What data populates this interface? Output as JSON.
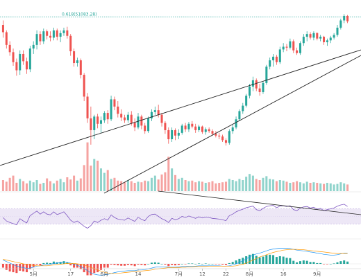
{
  "colors": {
    "up": "#26a69a",
    "down": "#ef5350",
    "vol_up": "#8fd3cb",
    "vol_down": "#f5a3a1",
    "rsi_line": "#7e57c2",
    "rsi_band": "#ede7f6",
    "macd_line": "#2196f3",
    "signal_line": "#ff9800",
    "trendline": "#222222",
    "fib_line": "#26a69a"
  },
  "fib_label": "0.618(51083.28)",
  "chart_data": {
    "type": "candlestick",
    "title": "",
    "x_tick_labels": [
      "5月",
      "17",
      "6月",
      "14",
      "7月",
      "12",
      "22",
      "8月",
      "16",
      "9月"
    ],
    "price_range": [
      36000,
      52800
    ],
    "price_panel": {
      "candles": [
        [
          50200,
          50700,
          48800,
          49400
        ],
        [
          49400,
          49600,
          47600,
          48000
        ],
        [
          48000,
          48400,
          46800,
          47200
        ],
        [
          47200,
          47600,
          45700,
          46100
        ],
        [
          46100,
          46500,
          44600,
          45200
        ],
        [
          45200,
          47400,
          44700,
          47000
        ],
        [
          47000,
          47400,
          45800,
          46200
        ],
        [
          46200,
          46600,
          44800,
          45300
        ],
        [
          45300,
          47900,
          45000,
          47600
        ],
        [
          47600,
          48400,
          47000,
          48000
        ],
        [
          48000,
          49600,
          47500,
          49200
        ],
        [
          49200,
          49500,
          48000,
          48400
        ],
        [
          48400,
          49800,
          48100,
          49500
        ],
        [
          49500,
          49700,
          48600,
          49000
        ],
        [
          49000,
          49500,
          48400,
          48800
        ],
        [
          48800,
          49900,
          48500,
          49600
        ],
        [
          49600,
          49800,
          48500,
          48900
        ],
        [
          48900,
          49600,
          48300,
          49300
        ],
        [
          49300,
          49900,
          49000,
          49600
        ],
        [
          49600,
          50000,
          48700,
          49000
        ],
        [
          49000,
          49200,
          46800,
          47300
        ],
        [
          47300,
          47600,
          45600,
          46000
        ],
        [
          46000,
          46600,
          45600,
          46300
        ],
        [
          46300,
          46500,
          44300,
          44700
        ],
        [
          44700,
          44900,
          41800,
          42300
        ],
        [
          42300,
          42700,
          39400,
          39900
        ],
        [
          39900,
          41200,
          37000,
          38600
        ],
        [
          38600,
          40300,
          37600,
          40100
        ],
        [
          40100,
          40400,
          38800,
          39300
        ],
        [
          39300,
          40100,
          38300,
          39700
        ],
        [
          39700,
          40700,
          39400,
          40500
        ],
        [
          40500,
          40800,
          39300,
          39800
        ],
        [
          39800,
          42400,
          39600,
          42000
        ],
        [
          42000,
          42300,
          40800,
          41200
        ],
        [
          41200,
          41800,
          40000,
          40400
        ],
        [
          40400,
          40900,
          39600,
          40000
        ],
        [
          40000,
          40300,
          39400,
          39700
        ],
        [
          39700,
          40600,
          39400,
          40300
        ],
        [
          40300,
          40700,
          39100,
          39400
        ],
        [
          39400,
          39900,
          38500,
          38900
        ],
        [
          38900,
          40500,
          38700,
          40100
        ],
        [
          40100,
          40300,
          38700,
          39100
        ],
        [
          39100,
          39400,
          38200,
          38500
        ],
        [
          38500,
          40100,
          38300,
          39900
        ],
        [
          39900,
          40900,
          39600,
          40600
        ],
        [
          40600,
          41200,
          40300,
          40800
        ],
        [
          40800,
          41400,
          40000,
          40300
        ],
        [
          40300,
          40500,
          39000,
          39400
        ],
        [
          39400,
          39600,
          38200,
          38600
        ],
        [
          38600,
          38900,
          37100,
          37600
        ],
        [
          37600,
          38900,
          37300,
          38600
        ],
        [
          38600,
          38800,
          37500,
          38000
        ],
        [
          38000,
          38700,
          37600,
          38300
        ],
        [
          38300,
          39300,
          38100,
          39100
        ],
        [
          39100,
          39400,
          38400,
          38700
        ],
        [
          38700,
          39500,
          38400,
          39300
        ],
        [
          39300,
          39600,
          38800,
          39000
        ],
        [
          39000,
          39300,
          38300,
          38600
        ],
        [
          38600,
          39200,
          38400,
          39000
        ],
        [
          39000,
          39100,
          38200,
          38400
        ],
        [
          38400,
          38900,
          38100,
          38700
        ],
        [
          38700,
          38900,
          38300,
          38500
        ],
        [
          38500,
          38700,
          38000,
          38200
        ],
        [
          38200,
          38500,
          37800,
          38000
        ],
        [
          38000,
          38300,
          37600,
          37900
        ],
        [
          37900,
          38100,
          37300,
          37500
        ],
        [
          37500,
          37700,
          36900,
          37200
        ],
        [
          37200,
          38700,
          37000,
          38500
        ],
        [
          38500,
          39200,
          38200,
          38900
        ],
        [
          38900,
          40100,
          38700,
          39800
        ],
        [
          39800,
          40900,
          39600,
          40700
        ],
        [
          40700,
          41600,
          40400,
          41300
        ],
        [
          41300,
          42600,
          41100,
          42400
        ],
        [
          42400,
          43700,
          42100,
          43400
        ],
        [
          43400,
          44500,
          42900,
          44100
        ],
        [
          44100,
          44300,
          42900,
          43200
        ],
        [
          43200,
          43700,
          42400,
          42800
        ],
        [
          42800,
          44000,
          42600,
          43800
        ],
        [
          43800,
          45800,
          43600,
          45600
        ],
        [
          45600,
          46600,
          45300,
          46300
        ],
        [
          46300,
          47000,
          45600,
          46700
        ],
        [
          46700,
          46900,
          45800,
          46100
        ],
        [
          46100,
          47800,
          45900,
          47500
        ],
        [
          47500,
          48200,
          47200,
          47800
        ],
        [
          47800,
          48100,
          47300,
          47700
        ],
        [
          47700,
          48700,
          47500,
          48400
        ],
        [
          48400,
          48600,
          47100,
          47400
        ],
        [
          47400,
          47700,
          46900,
          47100
        ],
        [
          47100,
          48400,
          46900,
          48200
        ],
        [
          48200,
          49200,
          47900,
          48900
        ],
        [
          48900,
          49500,
          48400,
          49200
        ],
        [
          49200,
          49400,
          48600,
          48800
        ],
        [
          48800,
          49500,
          48500,
          49300
        ],
        [
          49300,
          49400,
          48500,
          48700
        ],
        [
          48700,
          49100,
          48400,
          48900
        ],
        [
          48900,
          49000,
          48000,
          48300
        ],
        [
          48300,
          48700,
          47900,
          48500
        ],
        [
          48500,
          49000,
          48200,
          48800
        ],
        [
          48800,
          49300,
          48600,
          49100
        ],
        [
          49100,
          50200,
          48900,
          49900
        ],
        [
          49900,
          50900,
          49700,
          50700
        ],
        [
          50700,
          51400,
          50400,
          51200
        ],
        [
          51200,
          51300,
          50400,
          50600
        ]
      ]
    },
    "volume_panel": {
      "volumes": [
        20,
        17,
        24,
        28,
        15,
        22,
        18,
        14,
        19,
        16,
        20,
        13,
        15,
        23,
        18,
        14,
        19,
        22,
        16,
        25,
        21,
        28,
        19,
        23,
        47,
        88,
        46,
        58,
        55,
        41,
        33,
        38,
        22,
        24,
        19,
        18,
        16,
        20,
        18,
        15,
        17,
        16,
        19,
        18,
        24,
        28,
        21,
        30,
        34,
        62,
        41,
        29,
        22,
        24,
        20,
        18,
        19,
        16,
        18,
        17,
        15,
        16,
        18,
        14,
        15,
        16,
        17,
        22,
        20,
        18,
        22,
        20,
        26,
        31,
        28,
        22,
        20,
        24,
        27,
        22,
        21,
        18,
        20,
        19,
        17,
        15,
        16,
        18,
        16,
        14,
        17,
        15,
        16,
        15,
        14,
        13,
        15,
        14,
        12,
        13,
        16,
        14,
        12
      ]
    },
    "rsi_panel": {
      "levels": [
        70,
        30
      ],
      "values": [
        47,
        38,
        34,
        31,
        28,
        44,
        38,
        33,
        52,
        58,
        64,
        56,
        62,
        56,
        54,
        62,
        55,
        58,
        62,
        52,
        40,
        34,
        38,
        31,
        24,
        19,
        26,
        38,
        34,
        40,
        44,
        40,
        54,
        47,
        43,
        41,
        40,
        46,
        41,
        37,
        48,
        42,
        39,
        50,
        55,
        56,
        50,
        44,
        40,
        34,
        45,
        41,
        44,
        50,
        47,
        51,
        48,
        45,
        49,
        46,
        48,
        47,
        45,
        44,
        43,
        41,
        39,
        52,
        56,
        62,
        66,
        69,
        73,
        75,
        77,
        68,
        65,
        71,
        76,
        78,
        79,
        73,
        77,
        78,
        76,
        78,
        68,
        65,
        72,
        75,
        76,
        72,
        74,
        69,
        71,
        65,
        68,
        70,
        72,
        77,
        80,
        82,
        76
      ]
    },
    "macd_panel": {
      "histogram": [
        -10,
        -16,
        -20,
        -22,
        -24,
        -18,
        -20,
        -22,
        -14,
        -8,
        -2,
        -4,
        2,
        3,
        2,
        6,
        4,
        5,
        7,
        4,
        -4,
        -10,
        -10,
        -14,
        -22,
        -30,
        -30,
        -24,
        -22,
        -16,
        -10,
        -10,
        -2,
        -3,
        -4,
        -5,
        -5,
        -3,
        -4,
        -6,
        -2,
        -3,
        -4,
        0,
        3,
        4,
        3,
        0,
        -2,
        -6,
        -3,
        -4,
        -3,
        0,
        -1,
        1,
        1,
        0,
        1,
        0,
        1,
        0,
        0,
        -1,
        -1,
        -2,
        -3,
        2,
        5,
        9,
        13,
        16,
        20,
        24,
        26,
        21,
        17,
        19,
        23,
        24,
        23,
        18,
        20,
        19,
        16,
        15,
        8,
        4,
        7,
        9,
        8,
        5,
        5,
        2,
        2,
        -1,
        -1,
        0,
        1,
        4,
        7,
        9,
        6
      ],
      "macd": [
        10,
        6,
        2,
        -2,
        -6,
        -8,
        -10,
        -12,
        -11,
        -9,
        -6,
        -5,
        -3,
        -2,
        -1,
        1,
        2,
        3,
        4,
        4,
        2,
        -1,
        -4,
        -7,
        -12,
        -18,
        -24,
        -27,
        -29,
        -30,
        -29,
        -28,
        -25,
        -23,
        -21,
        -20,
        -19,
        -18,
        -18,
        -18,
        -16,
        -16,
        -15,
        -13,
        -11,
        -9,
        -8,
        -8,
        -8,
        -9,
        -9,
        -9,
        -8,
        -7,
        -7,
        -6,
        -6,
        -6,
        -5,
        -5,
        -5,
        -5,
        -5,
        -5,
        -5,
        -6,
        -6,
        -5,
        -3,
        0,
        4,
        8,
        13,
        18,
        23,
        26,
        28,
        31,
        34,
        37,
        39,
        40,
        41,
        41,
        41,
        40,
        38,
        36,
        35,
        34,
        33,
        31,
        30,
        28,
        27,
        25,
        24,
        23,
        23,
        24,
        26,
        28,
        28
      ],
      "signal": [
        12,
        10,
        8,
        6,
        4,
        2,
        0,
        -2,
        -3,
        -4,
        -5,
        -5,
        -5,
        -5,
        -4,
        -3,
        -2,
        -1,
        0,
        1,
        1,
        1,
        0,
        -1,
        -3,
        -6,
        -9,
        -13,
        -16,
        -19,
        -22,
        -24,
        -25,
        -25,
        -25,
        -24,
        -23,
        -22,
        -21,
        -20,
        -19,
        -19,
        -18,
        -17,
        -16,
        -14,
        -13,
        -12,
        -11,
        -10,
        -10,
        -10,
        -10,
        -9,
        -9,
        -8,
        -8,
        -7,
        -7,
        -7,
        -7,
        -6,
        -6,
        -6,
        -6,
        -6,
        -6,
        -6,
        -6,
        -5,
        -3,
        -1,
        2,
        6,
        10,
        14,
        18,
        21,
        24,
        27,
        30,
        32,
        34,
        36,
        37,
        38,
        38,
        38,
        37,
        37,
        36,
        35,
        34,
        33,
        32,
        31,
        30,
        29,
        28,
        27,
        27,
        27,
        27
      ]
    }
  }
}
